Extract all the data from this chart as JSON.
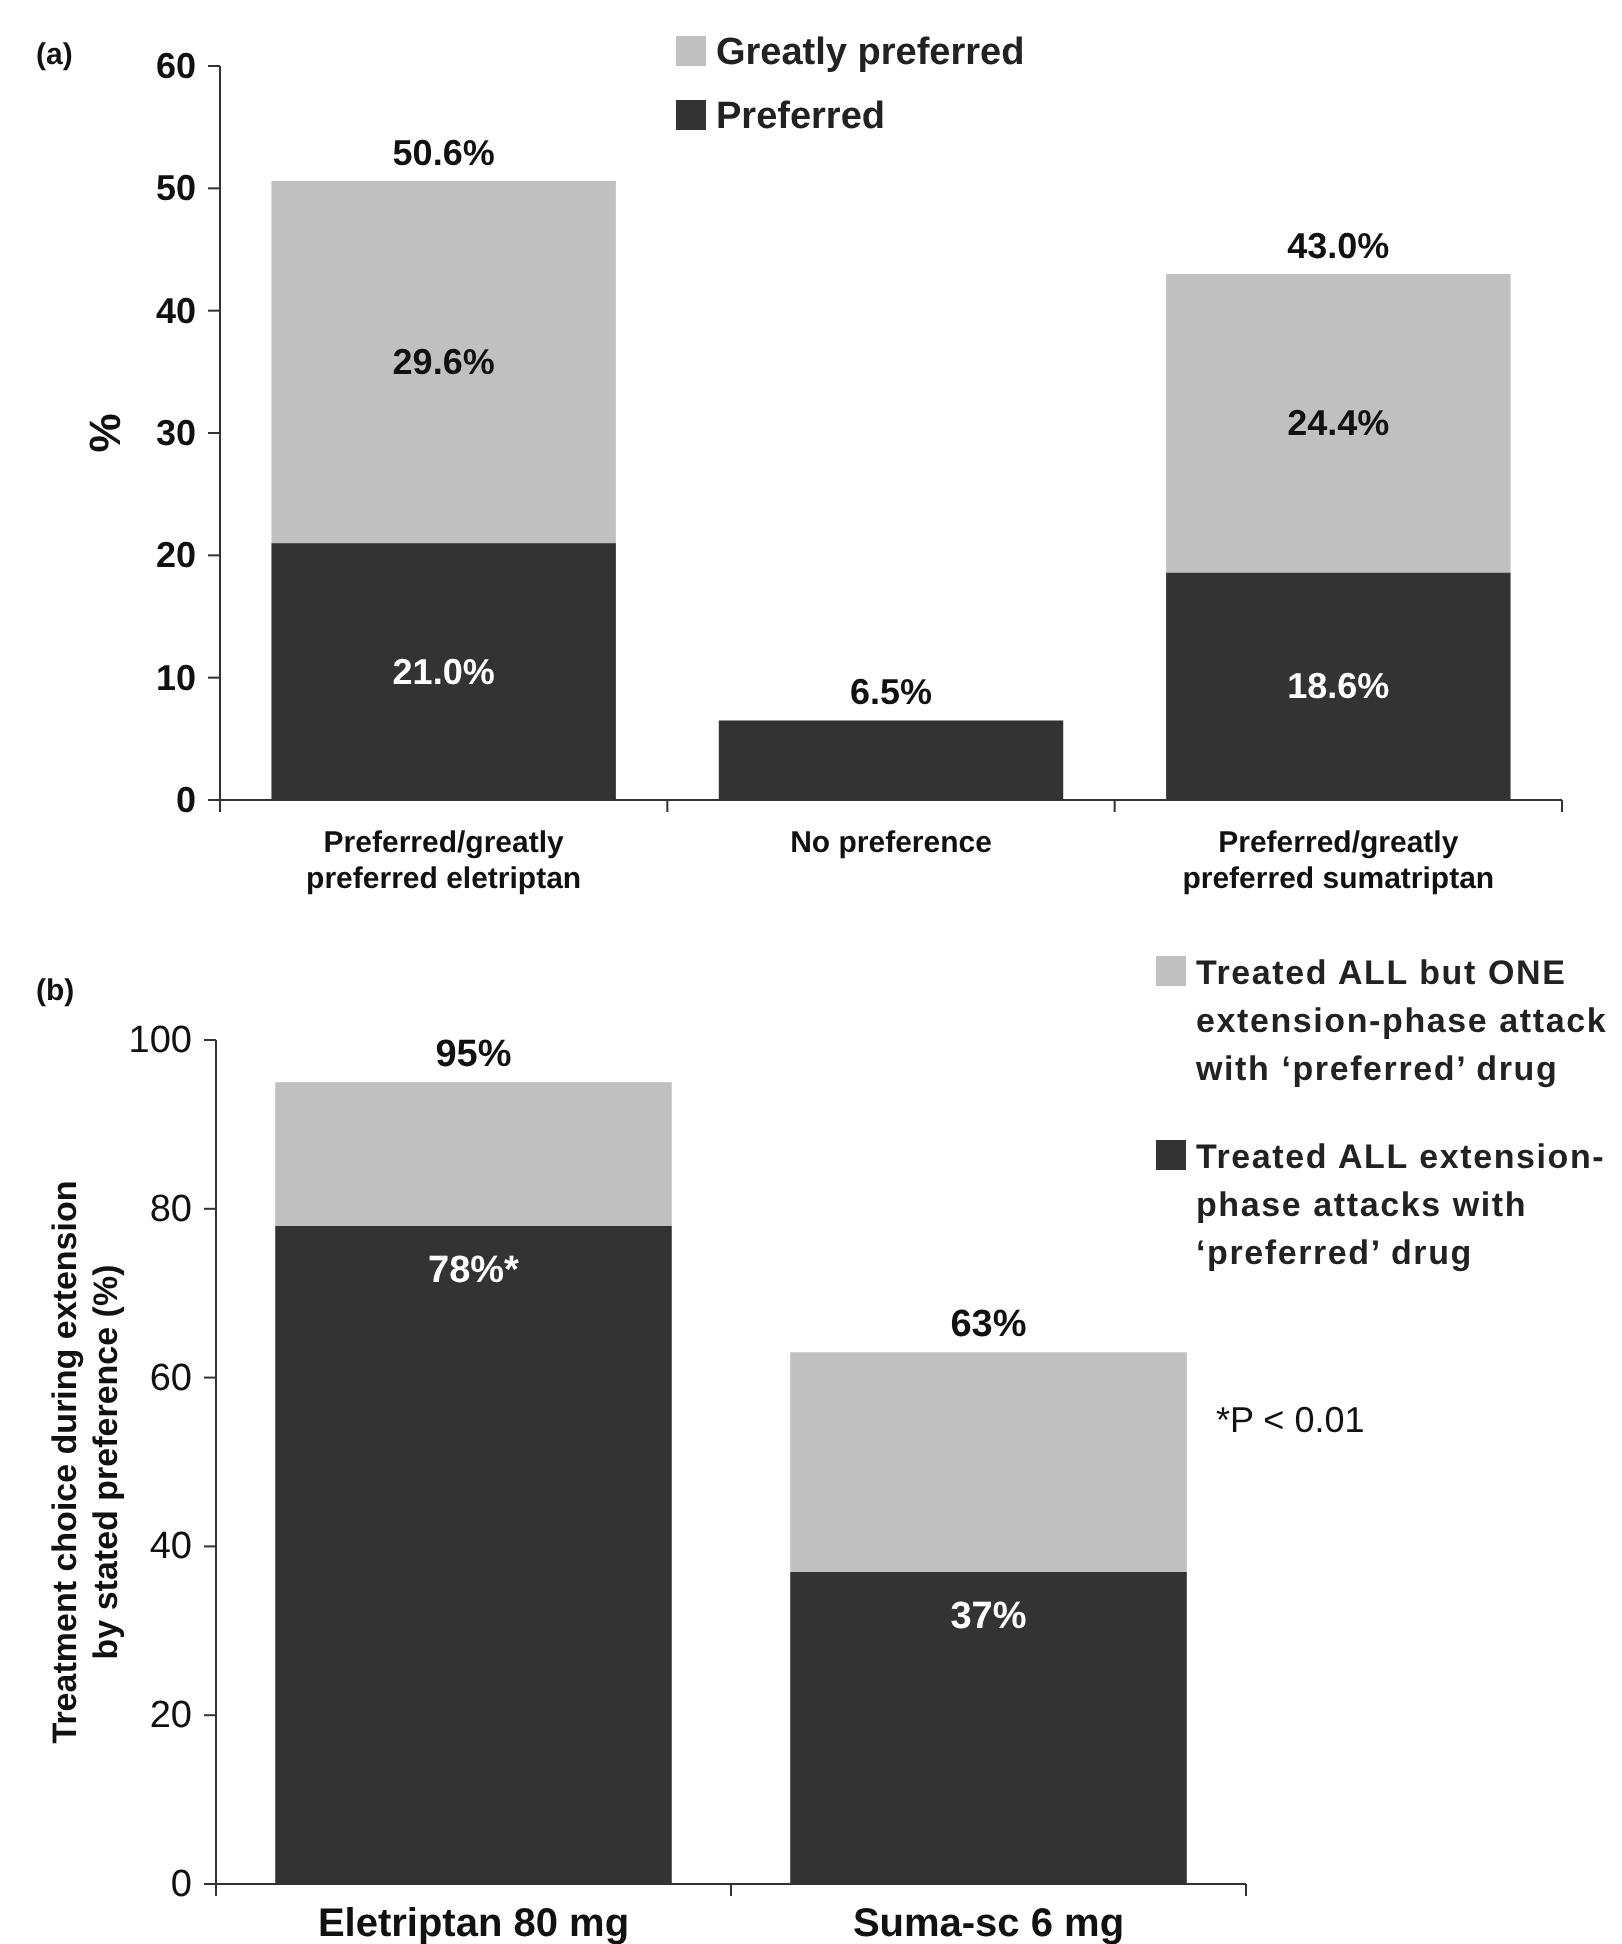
{
  "chart_data": [
    {
      "type": "bar",
      "title": "(a)",
      "ylabel": "%",
      "stacked": true,
      "legend": "top",
      "categories": [
        "Preferred/greatly preferred eletriptan",
        "No preference",
        "Preferred/greatly preferred sumatriptan"
      ],
      "series": [
        {
          "name": "Preferred",
          "color": "#333333",
          "values": [
            21.0,
            6.5,
            18.6
          ],
          "value_labels": [
            "21.0%",
            null,
            "18.6%"
          ]
        },
        {
          "name": "Greatly preferred",
          "color": "#c0c0c0",
          "values": [
            29.6,
            null,
            24.4
          ],
          "value_labels": [
            "29.6%",
            null,
            "24.4%"
          ]
        }
      ],
      "totals": [
        "50.6%",
        "6.5%",
        "43.0%"
      ],
      "ylim": [
        0,
        60
      ],
      "yticks": [
        0,
        10,
        20,
        30,
        40,
        50,
        60
      ]
    },
    {
      "type": "bar",
      "title": "(b)",
      "ylabel": "Treatment choice during extension by stated preference (%)",
      "stacked": true,
      "legend": "right",
      "categories": [
        "Eletriptan 80 mg",
        "Suma-sc 6 mg"
      ],
      "series": [
        {
          "name": "Treated ALL extension-phase attacks with ‘preferred’ drug",
          "color": "#333333",
          "values": [
            78,
            37
          ],
          "value_labels": [
            "78%*",
            "37%"
          ]
        },
        {
          "name": "Treated ALL but ONE extension-phase attack with ‘preferred’ drug",
          "color": "#c0c0c0",
          "values": [
            17,
            26
          ],
          "value_labels": [
            null,
            null
          ]
        }
      ],
      "totals": [
        "95%",
        "63%"
      ],
      "annotations": [
        "*P < 0.01"
      ],
      "ylim": [
        0,
        100
      ],
      "yticks": [
        0,
        20,
        40,
        60,
        80,
        100
      ]
    }
  ]
}
